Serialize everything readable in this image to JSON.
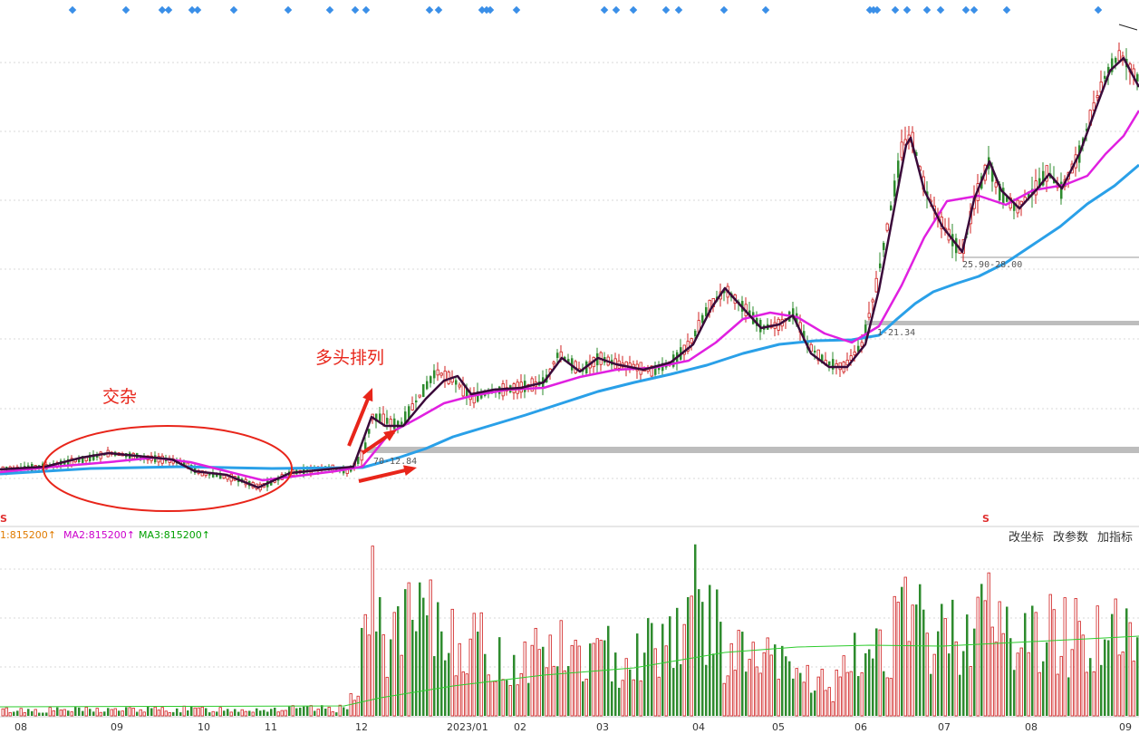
{
  "chart_data": {
    "type": "candlestick",
    "price_panel": {
      "moving_averages": [
        {
          "color": "#3a0a3a"
        },
        {
          "color": "#e020e0"
        },
        {
          "color": "#2aa0e8"
        }
      ],
      "price_levels": [
        {
          "label": "70-12.84"
        },
        {
          "label": "1-21.34"
        },
        {
          "label": "25.90-28.00"
        }
      ]
    },
    "volume_panel": {
      "labels": {
        "ma1": "1:815200↑",
        "ma2": "MA2:815200↑",
        "ma3": "MA3:815200↑"
      }
    },
    "x_ticks": [
      "08",
      "09",
      "10",
      "11",
      "12",
      "2023/01",
      "02",
      "03",
      "04",
      "05",
      "06",
      "07",
      "08",
      "09"
    ]
  },
  "toolbar": {
    "change_axis": "改坐标",
    "change_params": "改参数",
    "add_indicator": "加指标"
  },
  "annotations": {
    "mixed": "交杂",
    "bullish_alignment": "多头排列"
  },
  "signals": {
    "left_s": "S",
    "right_s": "S"
  },
  "colors": {
    "up": "#d02020",
    "down": "#2e8b2e",
    "arrow": "#e8251a",
    "signal_dot": "#3a8fe8"
  }
}
